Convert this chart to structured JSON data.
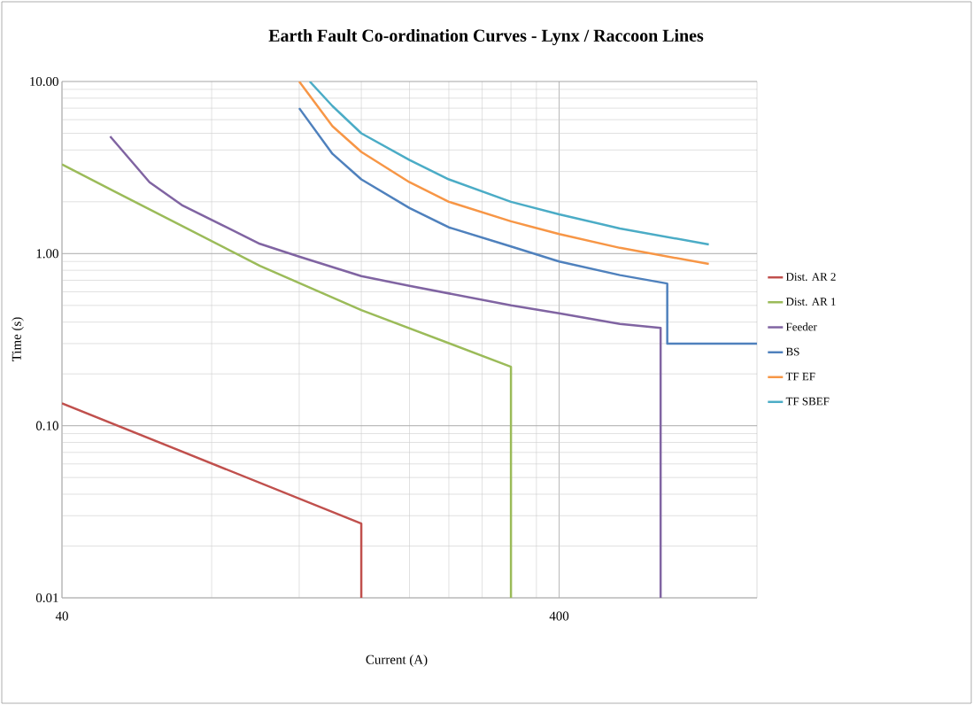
{
  "chart_data": {
    "type": "line",
    "title": "Earth Fault Co-ordination Curves  - Lynx / Raccoon Lines",
    "xlabel": "Current (A)",
    "ylabel": "Time (s)",
    "log": "xy",
    "grid": true,
    "legend": "right",
    "marker": "none",
    "line_style": "solid",
    "xlim": [
      40,
      1000
    ],
    "xticks": [
      40,
      400
    ],
    "ylim": [
      0.01,
      10
    ],
    "yticks": [
      {
        "value": 0.01,
        "label": "0.01"
      },
      {
        "value": 0.1,
        "label": "0.10"
      },
      {
        "value": 1,
        "label": "1.00"
      },
      {
        "value": 10,
        "label": "10.00"
      }
    ],
    "series": [
      {
        "name": "Dist. AR 2",
        "color": "#c0504d",
        "x": [
          40,
          160,
          160
        ],
        "values": [
          0.135,
          0.027,
          0.01
        ]
      },
      {
        "name": "Dist. AR 1",
        "color": "#9bbb59",
        "x": [
          40,
          51,
          100,
          160,
          320,
          320
        ],
        "values": [
          3.3,
          2.3,
          0.85,
          0.47,
          0.22,
          0.01
        ]
      },
      {
        "name": "Feeder",
        "color": "#8064a2",
        "x": [
          50,
          60,
          70,
          100,
          120,
          160,
          200,
          320,
          400,
          530,
          640,
          640
        ],
        "values": [
          4.8,
          2.6,
          1.9,
          1.14,
          0.96,
          0.74,
          0.65,
          0.5,
          0.45,
          0.39,
          0.37,
          0.01
        ]
      },
      {
        "name": "BS",
        "color": "#4f81bd",
        "x": [
          120,
          140,
          160,
          200,
          240,
          320,
          400,
          530,
          660,
          660,
          1000
        ],
        "values": [
          7.0,
          3.8,
          2.7,
          1.84,
          1.42,
          1.1,
          0.9,
          0.75,
          0.67,
          0.3,
          0.3
        ]
      },
      {
        "name": "TF EF",
        "color": "#f79646",
        "x": [
          120,
          140,
          160,
          200,
          240,
          320,
          400,
          530,
          800
        ],
        "values": [
          10,
          5.5,
          3.9,
          2.6,
          2.0,
          1.54,
          1.3,
          1.08,
          0.87
        ]
      },
      {
        "name": "TF SBEF",
        "color": "#4bacc6",
        "x": [
          126,
          140,
          160,
          200,
          240,
          320,
          400,
          530,
          800
        ],
        "values": [
          10,
          7.2,
          5.0,
          3.5,
          2.7,
          2.0,
          1.69,
          1.4,
          1.13
        ]
      }
    ]
  }
}
